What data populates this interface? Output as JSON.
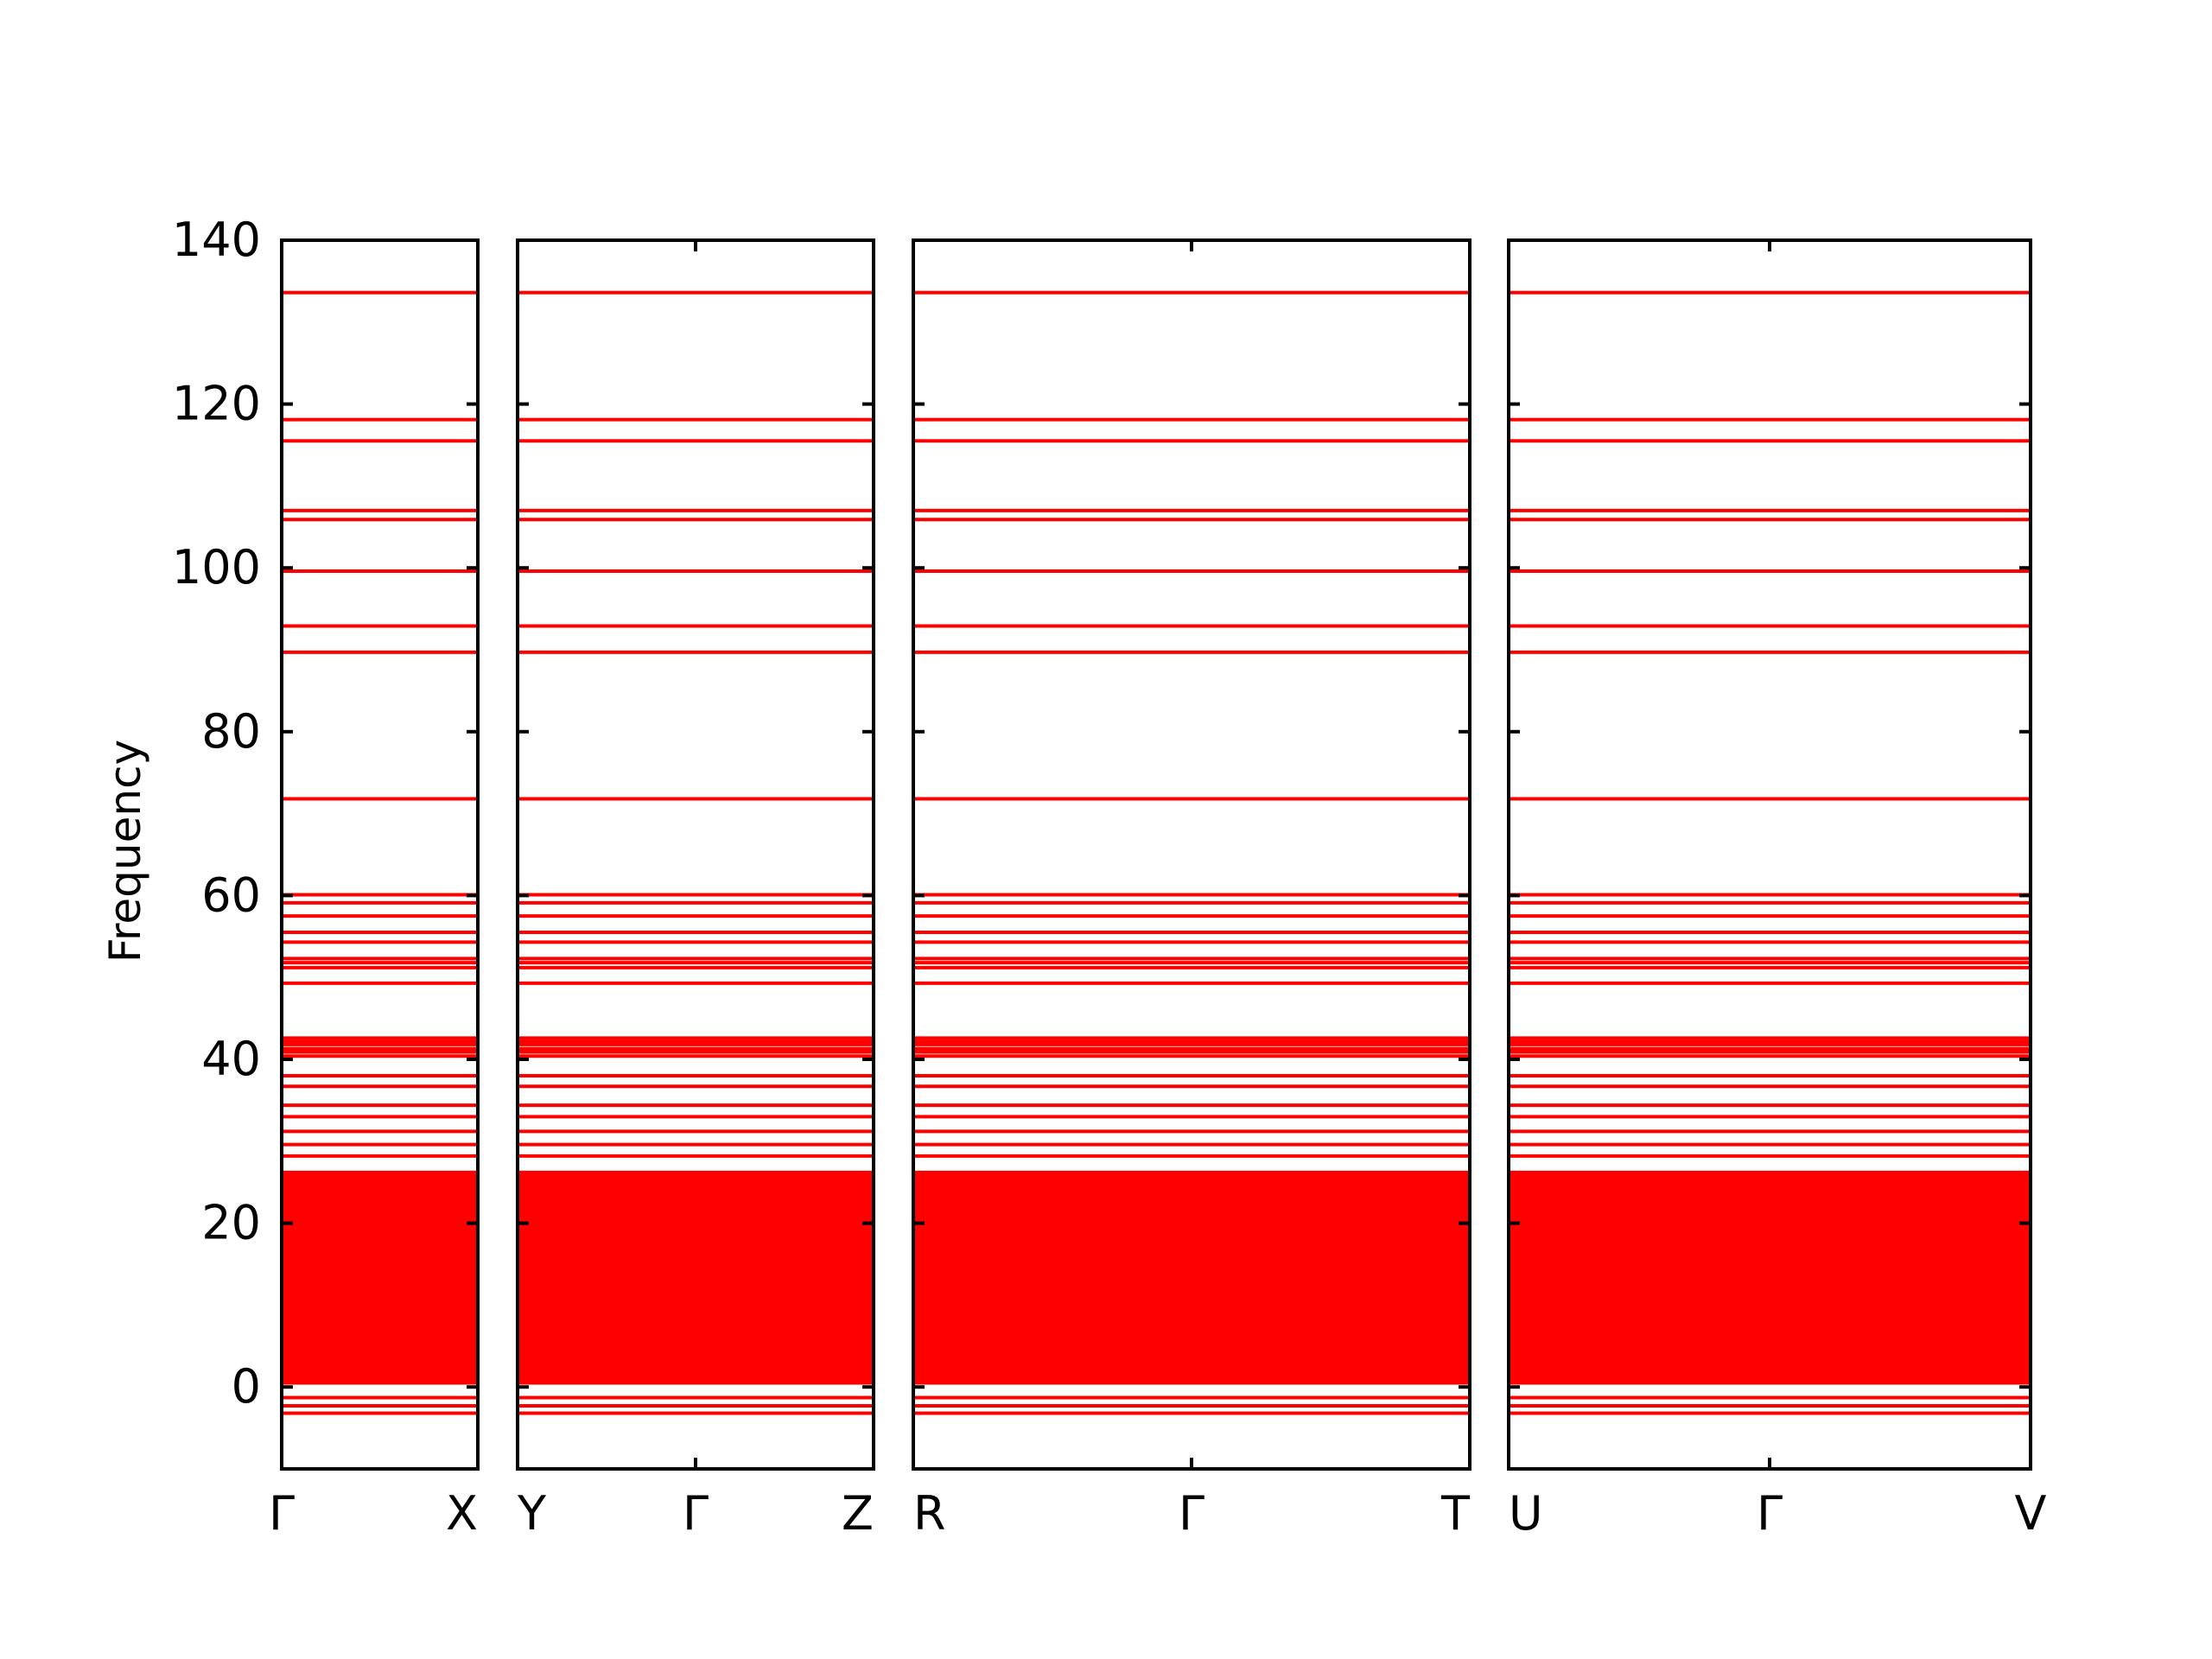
{
  "chart_data": {
    "type": "line",
    "ylabel": "Frequency",
    "ylim": [
      -10,
      140
    ],
    "yticks": [
      0,
      20,
      40,
      60,
      80,
      100,
      120,
      140
    ],
    "band_color": "#ff0000",
    "grid": false,
    "panels": [
      {
        "xticks": [
          "Γ",
          "X"
        ]
      },
      {
        "xticks": [
          "Y",
          "Γ",
          "Z"
        ]
      },
      {
        "xticks": [
          "R",
          "Γ",
          "T"
        ]
      },
      {
        "xticks": [
          "U",
          "Γ",
          "V"
        ]
      }
    ],
    "bands": [
      -3.2,
      -2.3,
      -1.3,
      0.5,
      0.9,
      26.2,
      28.2,
      29.6,
      31.2,
      33.0,
      34.4,
      36.7,
      38.0,
      40.4,
      40.9,
      41.3,
      41.8,
      42.2,
      42.6,
      49.3,
      51.2,
      51.8,
      52.3,
      54.3,
      55.5,
      57.5,
      59.1,
      60.1,
      71.8,
      89.7,
      92.9,
      99.6,
      105.9,
      107.0,
      115.5,
      118.1,
      133.6
    ]
  }
}
